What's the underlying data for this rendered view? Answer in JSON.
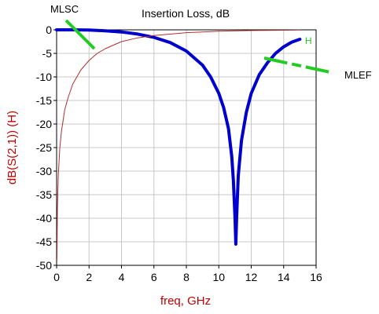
{
  "chart_data": {
    "type": "line",
    "title": "Insertion Loss, dB",
    "xlabel": "freq, GHz",
    "ylabel": "dB(S(2,1))  (H)",
    "xlim": [
      0,
      16
    ],
    "ylim": [
      -50,
      0
    ],
    "xticks": [
      0,
      2,
      4,
      6,
      8,
      10,
      12,
      14,
      16
    ],
    "yticks": [
      0,
      -5,
      -10,
      -15,
      -20,
      -25,
      -30,
      -35,
      -40,
      -45,
      -50
    ],
    "grid": true,
    "series": [
      {
        "name": "H",
        "color": "#0000cc",
        "x": [
          0,
          1,
          2,
          3,
          4,
          5,
          6,
          7,
          8,
          9,
          9.5,
          10,
          10.3,
          10.6,
          10.8,
          10.9,
          11.0,
          11.05,
          11.1,
          11.2,
          11.4,
          11.7,
          12,
          12.5,
          13,
          13.5,
          14,
          14.5,
          15
        ],
        "y": [
          0,
          0,
          -0.05,
          -0.2,
          -0.45,
          -0.9,
          -1.6,
          -2.7,
          -4.5,
          -7.5,
          -10.0,
          -13.5,
          -16.5,
          -21.0,
          -27.0,
          -32.0,
          -40.0,
          -45.5,
          -40.0,
          -31.0,
          -23.5,
          -17.5,
          -13.5,
          -9.5,
          -7.0,
          -5.0,
          -3.6,
          -2.6,
          -2.0
        ]
      },
      {
        "name": "",
        "color": "#b03030",
        "x": [
          0.02,
          0.05,
          0.1,
          0.2,
          0.3,
          0.5,
          0.7,
          1.0,
          1.5,
          2.0,
          2.5,
          3.0,
          4.0,
          5.0,
          6.0,
          8.0,
          10.0,
          12.0,
          14.0,
          15.0
        ],
        "y": [
          -49.0,
          -38.0,
          -31.0,
          -25.0,
          -21.5,
          -17.0,
          -14.5,
          -11.5,
          -8.5,
          -6.5,
          -5.0,
          -4.0,
          -2.5,
          -1.7,
          -1.2,
          -0.6,
          -0.3,
          -0.15,
          -0.08,
          -0.05
        ]
      }
    ],
    "annotations": [
      {
        "text": "MLSC"
      },
      {
        "text": "MLEF"
      },
      {
        "text": "H"
      }
    ]
  }
}
